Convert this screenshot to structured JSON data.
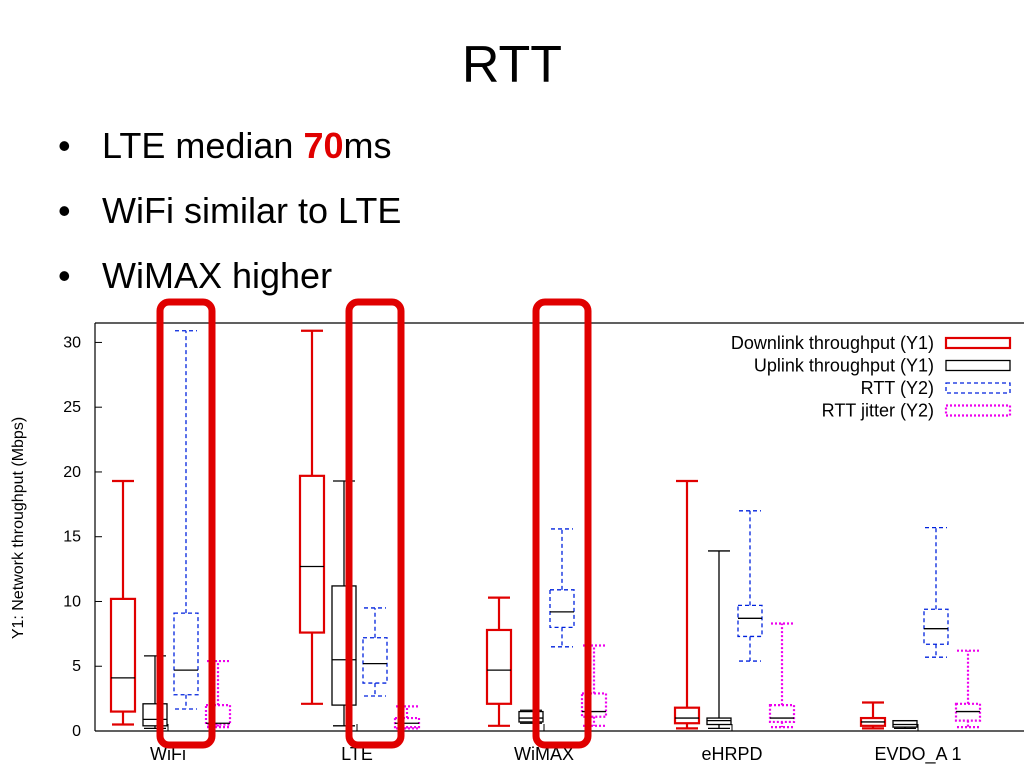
{
  "slide": {
    "title": "RTT",
    "bullets": [
      {
        "before": "LTE median ",
        "highlight": "70",
        "after": "ms"
      },
      {
        "before": "WiFi similar to LTE",
        "highlight": "",
        "after": ""
      },
      {
        "before": "WiMAX higher",
        "highlight": "",
        "after": ""
      }
    ],
    "bullet_char": "•",
    "highlight_color": "#e00000"
  },
  "chart_data": {
    "type": "box",
    "ylabel": "Y1: Network throughput (Mbps)",
    "ylim": [
      0,
      31.5
    ],
    "yticks": [
      0,
      5,
      10,
      15,
      20,
      25,
      30
    ],
    "categories": [
      "WiFi",
      "LTE",
      "WiMAX",
      "eHRPD",
      "EVDO_A 1"
    ],
    "series": [
      {
        "name": "Downlink throughput (Y1)",
        "color": "#e00000",
        "line": "solid",
        "width": 2.2,
        "boxes": [
          {
            "min": 0.5,
            "q1": 1.5,
            "median": 4.1,
            "q3": 10.2,
            "max": 19.3
          },
          {
            "min": 2.1,
            "q1": 7.6,
            "median": 12.7,
            "q3": 19.7,
            "max": 30.9
          },
          {
            "min": 0.4,
            "q1": 2.1,
            "median": 4.7,
            "q3": 7.8,
            "max": 10.3
          },
          {
            "min": 0.2,
            "q1": 0.6,
            "median": 1.0,
            "q3": 1.8,
            "max": 19.3
          },
          {
            "min": 0.2,
            "q1": 0.4,
            "median": 0.7,
            "q3": 1.0,
            "max": 2.2
          }
        ]
      },
      {
        "name": "Uplink throughput (Y1)",
        "color": "#000000",
        "line": "solid",
        "width": 1.3,
        "boxes": [
          {
            "min": 0.2,
            "q1": 0.4,
            "median": 0.9,
            "q3": 2.1,
            "max": 5.8
          },
          {
            "min": 0.4,
            "q1": 2.0,
            "median": 5.5,
            "q3": 11.2,
            "max": 19.3
          },
          {
            "min": 0.6,
            "q1": 0.7,
            "median": 1.0,
            "q3": 1.5,
            "max": 1.6
          },
          {
            "min": 0.2,
            "q1": 0.5,
            "median": 0.8,
            "q3": 1.0,
            "max": 13.9
          },
          {
            "min": 0.2,
            "q1": 0.3,
            "median": 0.5,
            "q3": 0.8,
            "max": 0.8
          }
        ]
      },
      {
        "name": "RTT (Y2)",
        "color": "#0022dd",
        "line": "dashed",
        "width": 1.3,
        "boxes": [
          {
            "min": 1.7,
            "q1": 2.8,
            "median": 4.7,
            "q3": 9.1,
            "max": 30.9
          },
          {
            "min": 2.7,
            "q1": 3.7,
            "median": 5.2,
            "q3": 7.2,
            "max": 9.5
          },
          {
            "min": 6.5,
            "q1": 8.0,
            "median": 9.2,
            "q3": 10.9,
            "max": 15.6
          },
          {
            "min": 5.4,
            "q1": 7.3,
            "median": 8.7,
            "q3": 9.7,
            "max": 17.0
          },
          {
            "min": 5.7,
            "q1": 6.7,
            "median": 7.9,
            "q3": 9.4,
            "max": 15.7
          }
        ]
      },
      {
        "name": "RTT jitter (Y2)",
        "color": "#ee00ee",
        "line": "dotted",
        "width": 2.2,
        "boxes": [
          {
            "min": 0.3,
            "q1": 0.5,
            "median": 0.6,
            "q3": 2.0,
            "max": 5.4
          },
          {
            "min": 0.2,
            "q1": 0.3,
            "median": 0.6,
            "q3": 1.0,
            "max": 1.9
          },
          {
            "min": 0.4,
            "q1": 1.1,
            "median": 1.5,
            "q3": 2.9,
            "max": 6.6
          },
          {
            "min": 0.3,
            "q1": 0.7,
            "median": 1.0,
            "q3": 2.0,
            "max": 8.3
          },
          {
            "min": 0.3,
            "q1": 0.8,
            "median": 1.5,
            "q3": 2.1,
            "max": 6.2
          }
        ]
      }
    ],
    "legend": "top-right",
    "highlights": {
      "color": "#e00000",
      "target_series": "RTT (Y2)",
      "categories": [
        "WiFi",
        "LTE",
        "WiMAX"
      ]
    }
  }
}
